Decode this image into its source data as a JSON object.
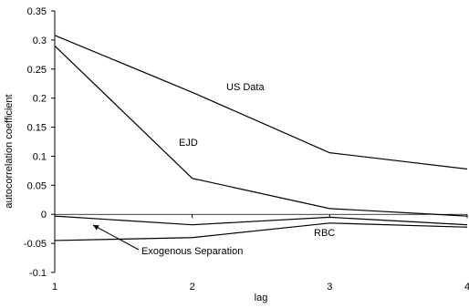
{
  "chart_data": {
    "type": "line",
    "xlabel": "lag",
    "ylabel": "autocorrelation coefficient",
    "x": [
      1,
      2,
      3,
      4
    ],
    "xlim": [
      1,
      4
    ],
    "ylim": [
      -0.1,
      0.35
    ],
    "xticks": [
      "1",
      "2",
      "3",
      "4"
    ],
    "yticks": [
      "0.35",
      "0.3",
      "0.25",
      "0.2",
      "0.15",
      "0.1",
      "0.05",
      "0",
      "-0.05",
      "-0.1"
    ],
    "grid": false,
    "legend": "none",
    "series": [
      {
        "name": "US Data",
        "values": [
          0.308,
          0.21,
          0.106,
          0.078
        ]
      },
      {
        "name": "EJD",
        "values": [
          0.29,
          0.062,
          0.01,
          -0.003
        ]
      },
      {
        "name": "RBC",
        "values": [
          -0.045,
          -0.04,
          -0.015,
          -0.022
        ]
      },
      {
        "name": "Exogenous Separation",
        "values": [
          -0.003,
          -0.018,
          -0.005,
          -0.018
        ]
      }
    ],
    "annotations": {
      "us_data": "US Data",
      "ejd": "EJD",
      "rbc": "RBC",
      "exogenous": "Exogenous Separation"
    }
  }
}
